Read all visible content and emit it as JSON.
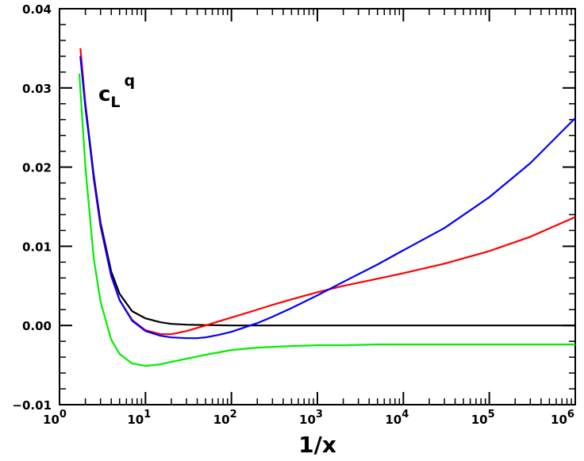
{
  "chart_data": {
    "type": "line",
    "xlabel": "1/x",
    "ylabel": "",
    "x_scale": "log",
    "xlim": [
      1,
      1000000
    ],
    "ylim": [
      -0.01,
      0.04
    ],
    "x_ticks": [
      {
        "value": 1,
        "base": "10",
        "exp": "0"
      },
      {
        "value": 10,
        "base": "10",
        "exp": "1"
      },
      {
        "value": 100,
        "base": "10",
        "exp": "2"
      },
      {
        "value": 1000,
        "base": "10",
        "exp": "3"
      },
      {
        "value": 10000,
        "base": "10",
        "exp": "4"
      },
      {
        "value": 100000,
        "base": "10",
        "exp": "5"
      },
      {
        "value": 1000000,
        "base": "10",
        "exp": "6"
      }
    ],
    "y_ticks": [
      {
        "value": -0.01,
        "label": "−0.01"
      },
      {
        "value": 0.0,
        "label": "0.00"
      },
      {
        "value": 0.01,
        "label": "0.01"
      },
      {
        "value": 0.02,
        "label": "0.02"
      },
      {
        "value": 0.03,
        "label": "0.03"
      },
      {
        "value": 0.04,
        "label": "0.04"
      }
    ],
    "annotation": {
      "main": "c",
      "sub": "L",
      "sup": "q"
    },
    "grid": false,
    "series": [
      {
        "color": "#000000",
        "x": [
          1.75,
          2,
          2.5,
          3,
          4,
          5,
          7,
          10,
          15,
          20,
          30,
          50,
          100,
          1000,
          10000,
          100000,
          1000000
        ],
        "y": [
          0.034,
          0.028,
          0.019,
          0.013,
          0.0068,
          0.004,
          0.0018,
          0.0009,
          0.0004,
          0.0002,
          0.0001,
          5e-05,
          0.0,
          0.0,
          0.0,
          0.0,
          0.0
        ]
      },
      {
        "color": "#ff0000",
        "x": [
          1.75,
          2,
          2.5,
          3,
          4,
          5,
          7,
          10,
          15,
          20,
          30,
          50,
          70,
          100,
          200,
          300,
          500,
          1000,
          2000,
          5000,
          10000,
          30000,
          100000,
          300000,
          1000000
        ],
        "y": [
          0.035,
          0.028,
          0.0185,
          0.0125,
          0.0062,
          0.0032,
          0.0007,
          -0.0006,
          -0.0011,
          -0.0011,
          -0.0007,
          0.0,
          0.0005,
          0.001,
          0.002,
          0.0026,
          0.0033,
          0.0042,
          0.005,
          0.0059,
          0.0066,
          0.0078,
          0.0094,
          0.0112,
          0.0137
        ]
      },
      {
        "color": "#0000ff",
        "x": [
          1.75,
          2,
          2.5,
          3,
          4,
          5,
          7,
          10,
          15,
          20,
          30,
          40,
          50,
          70,
          100,
          200,
          300,
          500,
          1000,
          2000,
          5000,
          10000,
          30000,
          100000,
          300000,
          1000000
        ],
        "y": [
          0.034,
          0.0275,
          0.0188,
          0.0128,
          0.0063,
          0.0032,
          0.0006,
          -0.0007,
          -0.0013,
          -0.0015,
          -0.0016,
          -0.0016,
          -0.0015,
          -0.0012,
          -0.0008,
          0.0003,
          0.0011,
          0.0022,
          0.0038,
          0.0055,
          0.0077,
          0.0095,
          0.0123,
          0.0162,
          0.0205,
          0.0262
        ]
      },
      {
        "color": "#00ee00",
        "x": [
          1.7,
          2,
          2.5,
          3,
          4,
          5,
          7,
          10,
          15,
          20,
          30,
          50,
          100,
          200,
          500,
          1000,
          2000,
          5000,
          10000,
          100000,
          1000000
        ],
        "y": [
          0.0318,
          0.02,
          0.0085,
          0.003,
          -0.0018,
          -0.0036,
          -0.0048,
          -0.0051,
          -0.0049,
          -0.0046,
          -0.0042,
          -0.0037,
          -0.0031,
          -0.0028,
          -0.0026,
          -0.0025,
          -0.0025,
          -0.0024,
          -0.0024,
          -0.0024,
          -0.0024
        ]
      }
    ]
  }
}
